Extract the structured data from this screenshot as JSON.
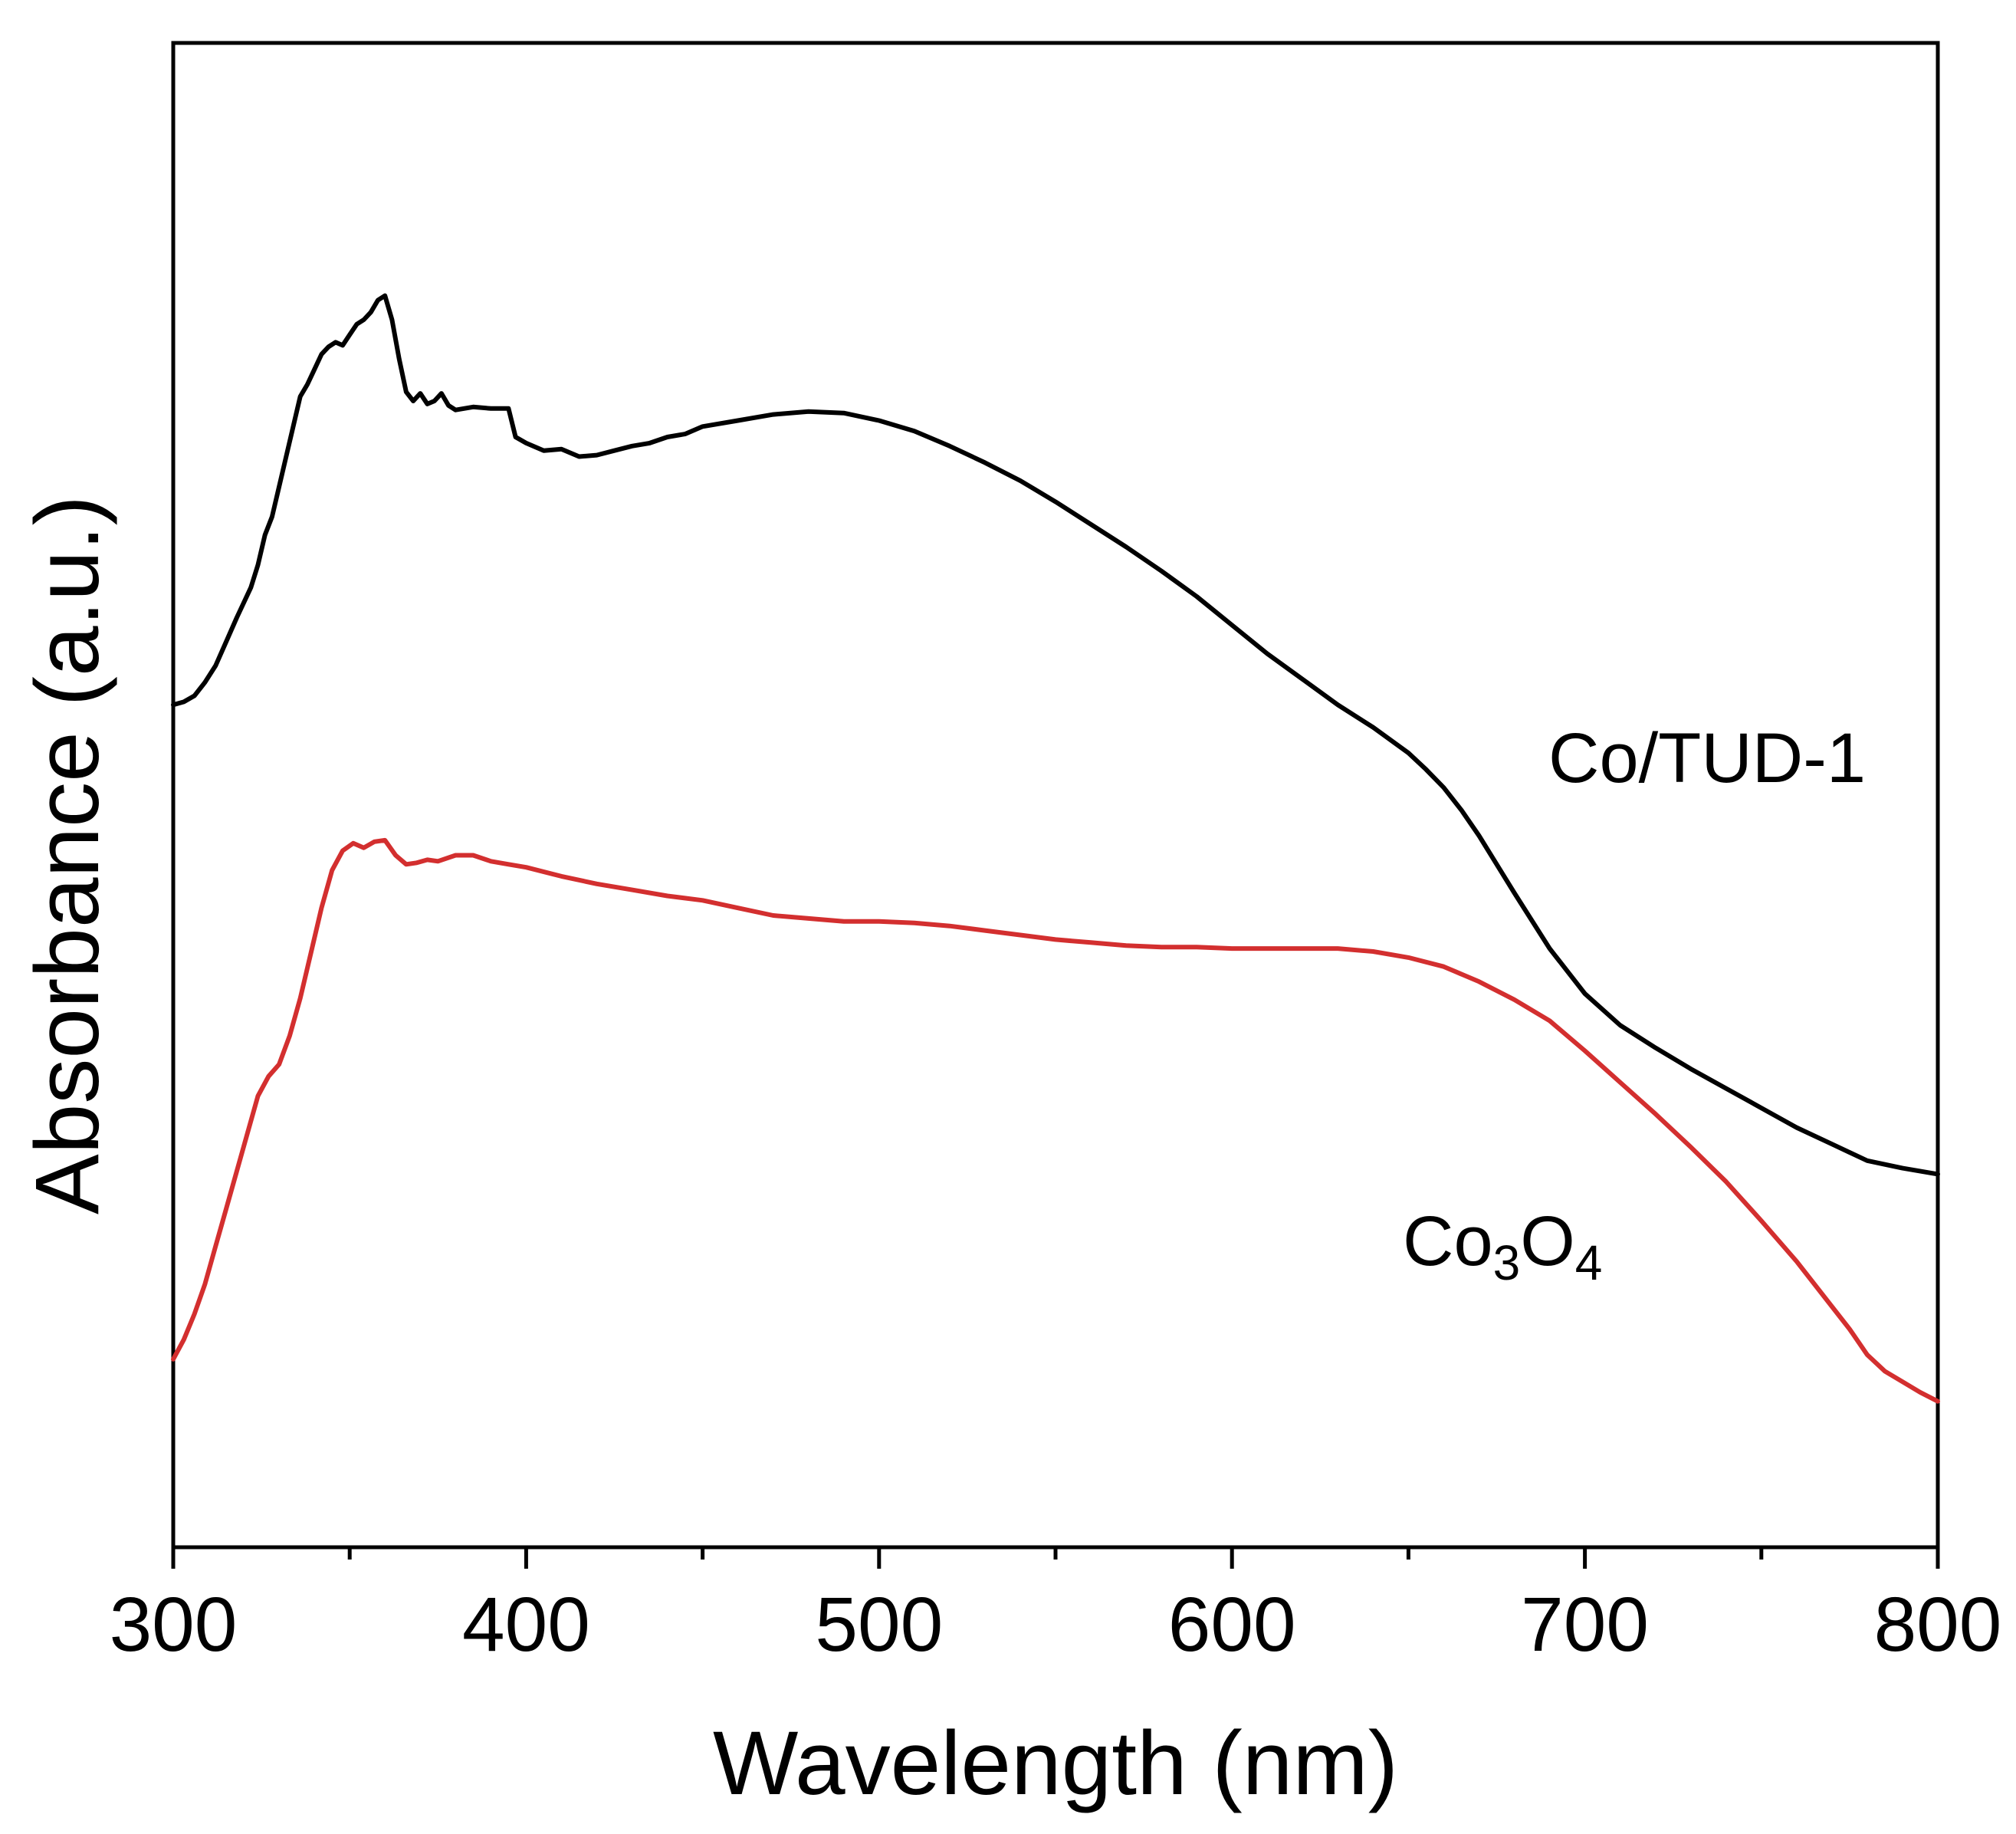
{
  "chart_data": {
    "type": "line",
    "title": "",
    "xlabel": "Wavelength (nm)",
    "ylabel": "Absorbance (a.u.)",
    "xlim": [
      300,
      800
    ],
    "ylim": [
      0,
      100
    ],
    "x_ticks": [
      300,
      400,
      500,
      600,
      700,
      800
    ],
    "x_minor_ticks": [
      350,
      450,
      550,
      650,
      750
    ],
    "y_ticks_labeled": false,
    "grid": false,
    "legend": "none",
    "series": [
      {
        "name": "Co/TUD-1",
        "color": "#000000",
        "label_text": "Co/TUD-1",
        "x": [
          300,
          303,
          306,
          309,
          312,
          315,
          318,
          320,
          322,
          324,
          326,
          328,
          330,
          332,
          334,
          336,
          338,
          340,
          342,
          344,
          346,
          348,
          350,
          352,
          354,
          356,
          358,
          360,
          362,
          364,
          366,
          368,
          370,
          372,
          374,
          376,
          378,
          380,
          385,
          390,
          395,
          397,
          400,
          405,
          410,
          415,
          420,
          425,
          430,
          435,
          440,
          445,
          450,
          460,
          470,
          480,
          490,
          500,
          510,
          520,
          530,
          540,
          550,
          560,
          570,
          580,
          590,
          600,
          610,
          620,
          630,
          640,
          650,
          655,
          660,
          665,
          670,
          680,
          690,
          700,
          710,
          720,
          730,
          740,
          750,
          760,
          770,
          780,
          790,
          800
        ],
        "y": [
          56.0,
          56.2,
          56.6,
          57.5,
          58.6,
          60.2,
          61.8,
          62.8,
          63.8,
          65.3,
          67.3,
          68.5,
          70.5,
          72.5,
          74.5,
          76.5,
          77.3,
          78.3,
          79.3,
          79.8,
          80.1,
          79.9,
          80.6,
          81.3,
          81.6,
          82.1,
          82.9,
          83.2,
          81.6,
          79.0,
          76.8,
          76.2,
          76.7,
          76.0,
          76.2,
          76.7,
          75.9,
          75.6,
          75.8,
          75.7,
          75.7,
          73.8,
          73.4,
          72.9,
          73.0,
          72.5,
          72.6,
          72.9,
          73.2,
          73.4,
          73.8,
          74.0,
          74.5,
          74.9,
          75.3,
          75.5,
          75.4,
          74.9,
          74.2,
          73.2,
          72.1,
          70.9,
          69.5,
          68.0,
          66.5,
          64.9,
          63.2,
          61.3,
          59.4,
          57.7,
          56.0,
          54.5,
          52.8,
          51.7,
          50.5,
          49.0,
          47.3,
          43.5,
          39.8,
          36.8,
          34.7,
          33.2,
          31.8,
          30.5,
          29.2,
          27.9,
          26.8,
          25.7,
          25.2,
          24.8
        ]
      },
      {
        "name": "Co3O4",
        "color": "#d32f2f",
        "label_text": "Co",
        "label_sub1": "3",
        "label_mid": "O",
        "label_sub2": "4",
        "x": [
          300,
          303,
          306,
          309,
          312,
          315,
          318,
          321,
          324,
          327,
          330,
          333,
          336,
          339,
          342,
          345,
          348,
          351,
          354,
          357,
          360,
          363,
          366,
          369,
          372,
          375,
          380,
          385,
          390,
          395,
          400,
          410,
          420,
          430,
          440,
          450,
          460,
          470,
          480,
          490,
          500,
          510,
          520,
          530,
          540,
          550,
          560,
          570,
          580,
          590,
          600,
          610,
          620,
          630,
          640,
          650,
          660,
          670,
          680,
          690,
          700,
          710,
          720,
          730,
          740,
          750,
          760,
          770,
          775,
          780,
          785,
          790,
          795,
          800
        ],
        "y": [
          12.5,
          13.8,
          15.5,
          17.5,
          20.0,
          22.5,
          25.0,
          27.5,
          30.0,
          31.3,
          32.1,
          34.0,
          36.5,
          39.5,
          42.5,
          45.0,
          46.3,
          46.8,
          46.5,
          46.9,
          47.0,
          46.0,
          45.4,
          45.5,
          45.7,
          45.6,
          46.0,
          46.0,
          45.6,
          45.4,
          45.2,
          44.6,
          44.1,
          43.7,
          43.3,
          43.0,
          42.5,
          42.0,
          41.8,
          41.6,
          41.6,
          41.5,
          41.3,
          41.0,
          40.7,
          40.4,
          40.2,
          40.0,
          39.9,
          39.9,
          39.8,
          39.8,
          39.8,
          39.8,
          39.6,
          39.2,
          38.6,
          37.6,
          36.4,
          35.0,
          33.0,
          30.9,
          28.8,
          26.6,
          24.3,
          21.7,
          19.0,
          16.0,
          14.5,
          12.8,
          11.7,
          11.0,
          10.3,
          9.7
        ]
      }
    ]
  }
}
